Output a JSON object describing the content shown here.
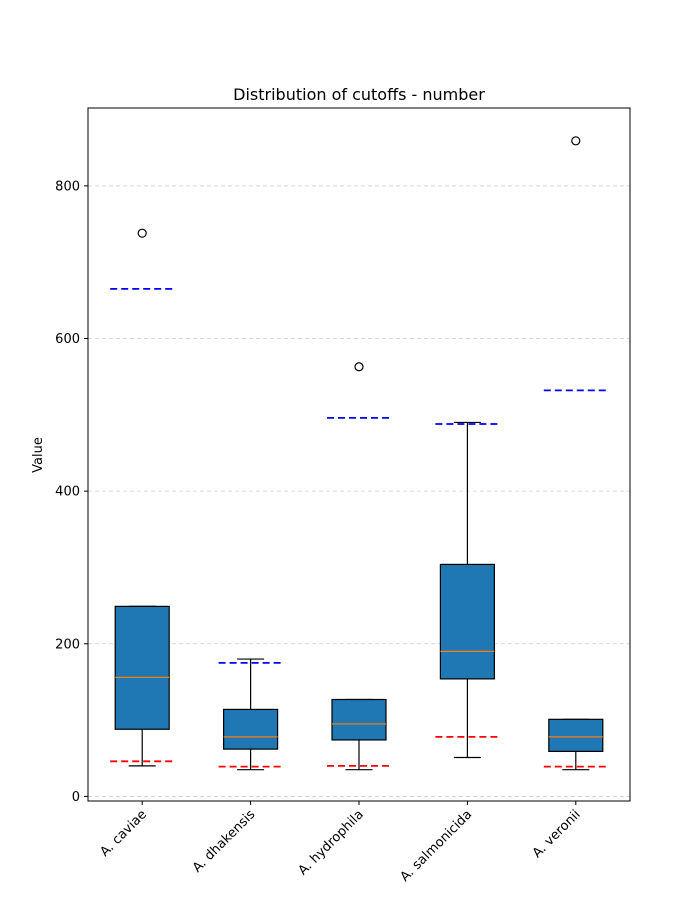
{
  "chart_data": {
    "type": "box",
    "title": "Distribution of cutoffs - number",
    "xlabel": "",
    "ylabel": "Value",
    "ylim": [
      -6,
      902
    ],
    "yticks": [
      0,
      200,
      400,
      600,
      800
    ],
    "grid": "horizontal-dashed",
    "categories": [
      "A. caviae",
      "A. dhakensis",
      "A. hydrophila",
      "A. salmonicida",
      "A. veronii"
    ],
    "boxes": [
      {
        "whisker_low": 40,
        "q1": 88,
        "median": 156,
        "q3": 249,
        "whisker_high": 249,
        "outliers": [
          738
        ],
        "upper_line": 665,
        "lower_line": 46
      },
      {
        "whisker_low": 35,
        "q1": 62,
        "median": 78,
        "q3": 114,
        "whisker_high": 180,
        "outliers": [],
        "upper_line": 175,
        "lower_line": 39
      },
      {
        "whisker_low": 35,
        "q1": 74,
        "median": 95,
        "q3": 127,
        "whisker_high": 127,
        "outliers": [
          563
        ],
        "upper_line": 496,
        "lower_line": 40
      },
      {
        "whisker_low": 51,
        "q1": 154,
        "median": 190,
        "q3": 304,
        "whisker_high": 490,
        "outliers": [],
        "upper_line": 488,
        "lower_line": 78
      },
      {
        "whisker_low": 35,
        "q1": 59,
        "median": 78,
        "q3": 101,
        "whisker_high": 101,
        "outliers": [
          859
        ],
        "upper_line": 532,
        "lower_line": 39
      }
    ],
    "colors": {
      "box_fill": "#1f77b4",
      "median": "#ff7f0e",
      "upper_line": "#0000ff",
      "lower_line": "#ff0000",
      "grid": "#cccccc"
    }
  }
}
